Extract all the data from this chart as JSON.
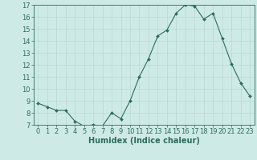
{
  "x": [
    0,
    1,
    2,
    3,
    4,
    5,
    6,
    7,
    8,
    9,
    10,
    11,
    12,
    13,
    14,
    15,
    16,
    17,
    18,
    19,
    20,
    21,
    22,
    23
  ],
  "y": [
    8.8,
    8.5,
    8.2,
    8.2,
    7.3,
    6.9,
    7.0,
    6.9,
    8.0,
    7.5,
    9.0,
    11.0,
    12.5,
    14.4,
    14.9,
    16.3,
    17.0,
    16.9,
    15.8,
    16.3,
    14.2,
    12.1,
    10.5,
    9.4
  ],
  "xlabel": "Humidex (Indice chaleur)",
  "ylim": [
    7,
    17
  ],
  "xlim": [
    -0.5,
    23.5
  ],
  "yticks": [
    7,
    8,
    9,
    10,
    11,
    12,
    13,
    14,
    15,
    16,
    17
  ],
  "xticks": [
    0,
    1,
    2,
    3,
    4,
    5,
    6,
    7,
    8,
    9,
    10,
    11,
    12,
    13,
    14,
    15,
    16,
    17,
    18,
    19,
    20,
    21,
    22,
    23
  ],
  "line_color": "#2d6b5e",
  "marker": "D",
  "marker_size": 2.0,
  "bg_color": "#ceeae7",
  "grid_color": "#b8d8d5",
  "tick_label_color": "#2d6b5e",
  "xlabel_fontsize": 7,
  "tick_fontsize": 6,
  "linewidth": 0.8
}
